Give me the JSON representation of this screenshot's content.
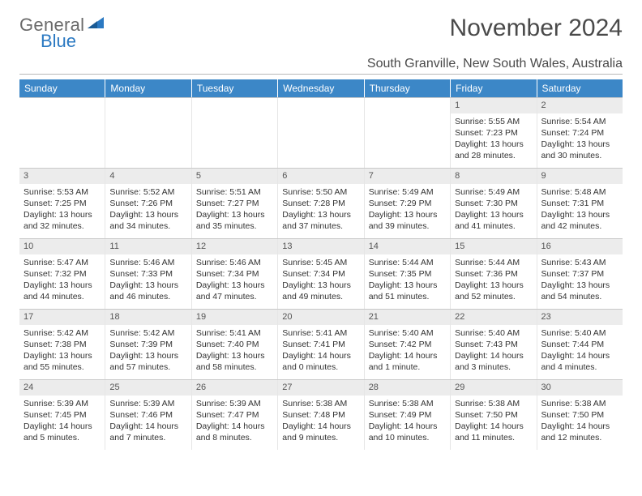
{
  "logo": {
    "word1": "General",
    "word2": "Blue"
  },
  "title": "November 2024",
  "location": "South Granville, New South Wales, Australia",
  "colors": {
    "header_bg": "#3c87c7",
    "header_text": "#ffffff",
    "daynum_bg": "#ececec",
    "border": "#c9c9c9",
    "text": "#333333",
    "logo_gray": "#6a6a6a",
    "logo_blue": "#2b79c2"
  },
  "weekdays": [
    "Sunday",
    "Monday",
    "Tuesday",
    "Wednesday",
    "Thursday",
    "Friday",
    "Saturday"
  ],
  "weeks": [
    [
      null,
      null,
      null,
      null,
      null,
      {
        "n": "1",
        "sunrise": "5:55 AM",
        "sunset": "7:23 PM",
        "daylight": "13 hours and 28 minutes."
      },
      {
        "n": "2",
        "sunrise": "5:54 AM",
        "sunset": "7:24 PM",
        "daylight": "13 hours and 30 minutes."
      }
    ],
    [
      {
        "n": "3",
        "sunrise": "5:53 AM",
        "sunset": "7:25 PM",
        "daylight": "13 hours and 32 minutes."
      },
      {
        "n": "4",
        "sunrise": "5:52 AM",
        "sunset": "7:26 PM",
        "daylight": "13 hours and 34 minutes."
      },
      {
        "n": "5",
        "sunrise": "5:51 AM",
        "sunset": "7:27 PM",
        "daylight": "13 hours and 35 minutes."
      },
      {
        "n": "6",
        "sunrise": "5:50 AM",
        "sunset": "7:28 PM",
        "daylight": "13 hours and 37 minutes."
      },
      {
        "n": "7",
        "sunrise": "5:49 AM",
        "sunset": "7:29 PM",
        "daylight": "13 hours and 39 minutes."
      },
      {
        "n": "8",
        "sunrise": "5:49 AM",
        "sunset": "7:30 PM",
        "daylight": "13 hours and 41 minutes."
      },
      {
        "n": "9",
        "sunrise": "5:48 AM",
        "sunset": "7:31 PM",
        "daylight": "13 hours and 42 minutes."
      }
    ],
    [
      {
        "n": "10",
        "sunrise": "5:47 AM",
        "sunset": "7:32 PM",
        "daylight": "13 hours and 44 minutes."
      },
      {
        "n": "11",
        "sunrise": "5:46 AM",
        "sunset": "7:33 PM",
        "daylight": "13 hours and 46 minutes."
      },
      {
        "n": "12",
        "sunrise": "5:46 AM",
        "sunset": "7:34 PM",
        "daylight": "13 hours and 47 minutes."
      },
      {
        "n": "13",
        "sunrise": "5:45 AM",
        "sunset": "7:34 PM",
        "daylight": "13 hours and 49 minutes."
      },
      {
        "n": "14",
        "sunrise": "5:44 AM",
        "sunset": "7:35 PM",
        "daylight": "13 hours and 51 minutes."
      },
      {
        "n": "15",
        "sunrise": "5:44 AM",
        "sunset": "7:36 PM",
        "daylight": "13 hours and 52 minutes."
      },
      {
        "n": "16",
        "sunrise": "5:43 AM",
        "sunset": "7:37 PM",
        "daylight": "13 hours and 54 minutes."
      }
    ],
    [
      {
        "n": "17",
        "sunrise": "5:42 AM",
        "sunset": "7:38 PM",
        "daylight": "13 hours and 55 minutes."
      },
      {
        "n": "18",
        "sunrise": "5:42 AM",
        "sunset": "7:39 PM",
        "daylight": "13 hours and 57 minutes."
      },
      {
        "n": "19",
        "sunrise": "5:41 AM",
        "sunset": "7:40 PM",
        "daylight": "13 hours and 58 minutes."
      },
      {
        "n": "20",
        "sunrise": "5:41 AM",
        "sunset": "7:41 PM",
        "daylight": "14 hours and 0 minutes."
      },
      {
        "n": "21",
        "sunrise": "5:40 AM",
        "sunset": "7:42 PM",
        "daylight": "14 hours and 1 minute."
      },
      {
        "n": "22",
        "sunrise": "5:40 AM",
        "sunset": "7:43 PM",
        "daylight": "14 hours and 3 minutes."
      },
      {
        "n": "23",
        "sunrise": "5:40 AM",
        "sunset": "7:44 PM",
        "daylight": "14 hours and 4 minutes."
      }
    ],
    [
      {
        "n": "24",
        "sunrise": "5:39 AM",
        "sunset": "7:45 PM",
        "daylight": "14 hours and 5 minutes."
      },
      {
        "n": "25",
        "sunrise": "5:39 AM",
        "sunset": "7:46 PM",
        "daylight": "14 hours and 7 minutes."
      },
      {
        "n": "26",
        "sunrise": "5:39 AM",
        "sunset": "7:47 PM",
        "daylight": "14 hours and 8 minutes."
      },
      {
        "n": "27",
        "sunrise": "5:38 AM",
        "sunset": "7:48 PM",
        "daylight": "14 hours and 9 minutes."
      },
      {
        "n": "28",
        "sunrise": "5:38 AM",
        "sunset": "7:49 PM",
        "daylight": "14 hours and 10 minutes."
      },
      {
        "n": "29",
        "sunrise": "5:38 AM",
        "sunset": "7:50 PM",
        "daylight": "14 hours and 11 minutes."
      },
      {
        "n": "30",
        "sunrise": "5:38 AM",
        "sunset": "7:50 PM",
        "daylight": "14 hours and 12 minutes."
      }
    ]
  ],
  "labels": {
    "sunrise": "Sunrise: ",
    "sunset": "Sunset: ",
    "daylight": "Daylight: "
  }
}
